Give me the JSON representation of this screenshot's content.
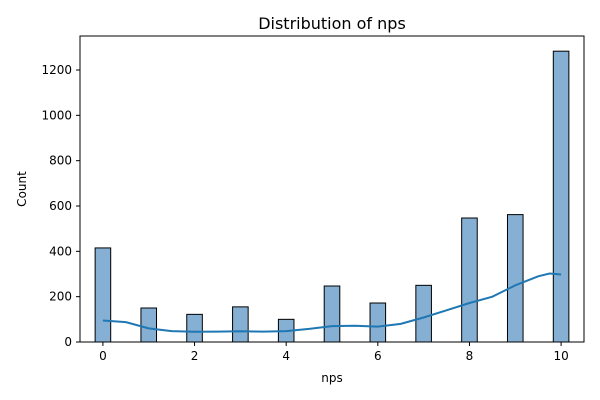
{
  "chart_data": {
    "type": "bar",
    "subtype": "histogram-with-kde",
    "title": "Distribution of nps",
    "xlabel": "nps",
    "ylabel": "Count",
    "xlim": [
      -0.5,
      10.5
    ],
    "ylim": [
      0,
      1350
    ],
    "xticks": [
      0,
      2,
      4,
      6,
      8,
      10
    ],
    "yticks": [
      0,
      200,
      400,
      600,
      800,
      1000,
      1200
    ],
    "bins": [
      {
        "x": 0,
        "count": 415
      },
      {
        "x": 1,
        "count": 150
      },
      {
        "x": 2,
        "count": 122
      },
      {
        "x": 3,
        "count": 155
      },
      {
        "x": 4,
        "count": 100
      },
      {
        "x": 5,
        "count": 247
      },
      {
        "x": 6,
        "count": 172
      },
      {
        "x": 7,
        "count": 250
      },
      {
        "x": 8,
        "count": 547
      },
      {
        "x": 9,
        "count": 562
      },
      {
        "x": 10,
        "count": 1283
      }
    ],
    "kde": {
      "x": [
        0,
        0.5,
        1,
        1.5,
        2,
        2.5,
        3,
        3.5,
        4,
        4.5,
        5,
        5.5,
        6,
        6.5,
        7,
        7.5,
        8,
        8.5,
        9,
        9.5,
        9.75,
        10
      ],
      "y": [
        95,
        88,
        60,
        48,
        45,
        46,
        47,
        46,
        48,
        58,
        70,
        72,
        68,
        80,
        108,
        140,
        172,
        200,
        250,
        290,
        302,
        298
      ]
    },
    "grid": false,
    "legend": "none",
    "colors": {
      "bar_fill": "#85b0d3",
      "bar_edge": "#000000",
      "kde_line": "#1f77b4"
    }
  }
}
